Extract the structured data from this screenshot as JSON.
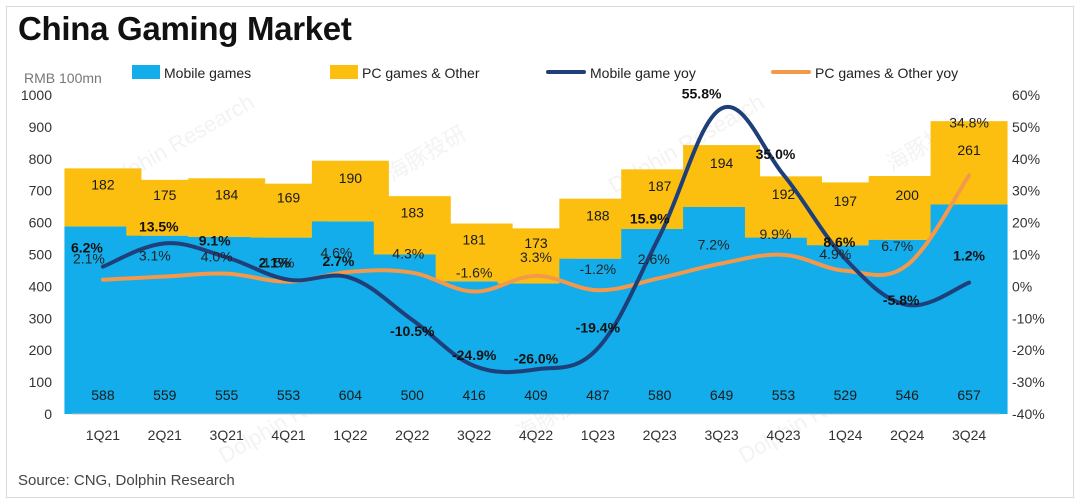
{
  "title": "China Gaming Market",
  "source": "Source: CNG, Dolphin Research",
  "watermarks": [
    "Dolphin Research",
    "海豚投研"
  ],
  "colors": {
    "mobile": "#12adea",
    "pc": "#fcbf10",
    "mobile_yoy": "#1f3f7a",
    "pc_yoy": "#f4994b",
    "axis_text": "#333333",
    "grid": "#d0d0d0"
  },
  "chart_data": {
    "type": "bar",
    "stacked": true,
    "title": "China Gaming Market",
    "ylabel": "RMB 100mn",
    "categories": [
      "1Q21",
      "2Q21",
      "3Q21",
      "4Q21",
      "1Q22",
      "2Q22",
      "3Q22",
      "4Q22",
      "1Q23",
      "2Q23",
      "3Q23",
      "4Q23",
      "1Q24",
      "2Q24",
      "3Q24"
    ],
    "ylim": [
      0,
      1000
    ],
    "y_ticks": [
      0,
      100,
      200,
      300,
      400,
      500,
      600,
      700,
      800,
      900,
      1000
    ],
    "y2lim": [
      -40,
      60
    ],
    "y2_ticks": [
      -40,
      -30,
      -20,
      -10,
      0,
      10,
      20,
      30,
      40,
      50,
      60
    ],
    "legend_position": "top",
    "series": [
      {
        "name": "Mobile games",
        "kind": "bar",
        "axis": "left",
        "values": [
          588,
          559,
          555,
          553,
          604,
          500,
          416,
          409,
          487,
          580,
          649,
          553,
          529,
          546,
          657
        ]
      },
      {
        "name": "PC games & Other",
        "kind": "bar",
        "axis": "left",
        "values": [
          182,
          175,
          184,
          169,
          190,
          183,
          181,
          173,
          188,
          187,
          194,
          192,
          197,
          200,
          261
        ]
      },
      {
        "name": "Mobile game yoy",
        "kind": "line",
        "axis": "right",
        "values": [
          6.2,
          13.5,
          9.1,
          2.1,
          2.7,
          -10.5,
          -24.9,
          -26.0,
          -19.4,
          15.9,
          55.8,
          35.0,
          8.6,
          -5.8,
          1.2
        ],
        "labels": [
          "6.2%",
          "13.5%",
          "9.1%",
          "2.1%",
          "2.7%",
          "-10.5%",
          "-24.9%",
          "-26.0%",
          "-19.4%",
          "15.9%",
          "55.8%",
          "35.0%",
          "8.6%",
          "-5.8%",
          "1.2%"
        ]
      },
      {
        "name": "PC games & Other yoy",
        "kind": "line",
        "axis": "right",
        "values": [
          2.1,
          3.1,
          4.0,
          1.5,
          4.6,
          4.3,
          -1.6,
          3.3,
          -1.2,
          2.6,
          7.2,
          9.9,
          4.9,
          6.7,
          34.8
        ],
        "labels": [
          "2.1%",
          "3.1%",
          "4.0%",
          "1.5%",
          "4.6%",
          "4.3%",
          "-1.6%",
          "3.3%",
          "-1.2%",
          "2.6%",
          "7.2%",
          "9.9%",
          "4.9%",
          "6.7%",
          "34.8%"
        ]
      }
    ]
  }
}
